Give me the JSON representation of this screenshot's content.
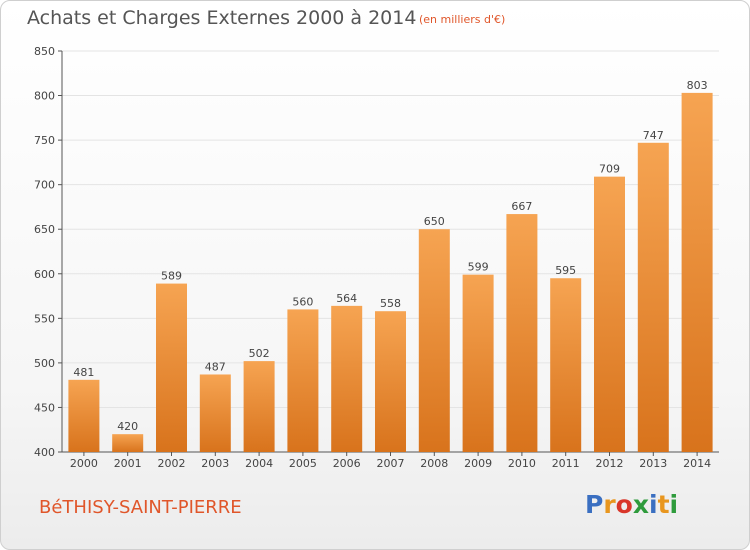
{
  "header": {
    "title": "Achats et Charges Externes 2000 à 2014",
    "subtitle": "(en milliers d'€)"
  },
  "footer": {
    "commune": "BéTHISY-SAINT-PIERRE",
    "logo_text": "Proxiti",
    "logo_colors": [
      "#3a6fc1",
      "#e8961e",
      "#d9362a",
      "#2e9b3c",
      "#3a6fc1",
      "#e8961e",
      "#2e9b3c"
    ]
  },
  "chart_data": {
    "type": "bar",
    "categories": [
      "2000",
      "2001",
      "2002",
      "2003",
      "2004",
      "2005",
      "2006",
      "2007",
      "2008",
      "2009",
      "2010",
      "2011",
      "2012",
      "2013",
      "2014"
    ],
    "values": [
      481,
      420,
      589,
      487,
      502,
      560,
      564,
      558,
      650,
      599,
      667,
      595,
      709,
      747,
      803
    ],
    "ylim": [
      400,
      850
    ],
    "yticks": [
      400,
      450,
      500,
      550,
      600,
      650,
      700,
      750,
      800,
      850
    ],
    "grid": true,
    "bar_color_top": "#f6a452",
    "bar_color_bottom": "#d8731c",
    "grid_color": "#e4e4e4"
  }
}
